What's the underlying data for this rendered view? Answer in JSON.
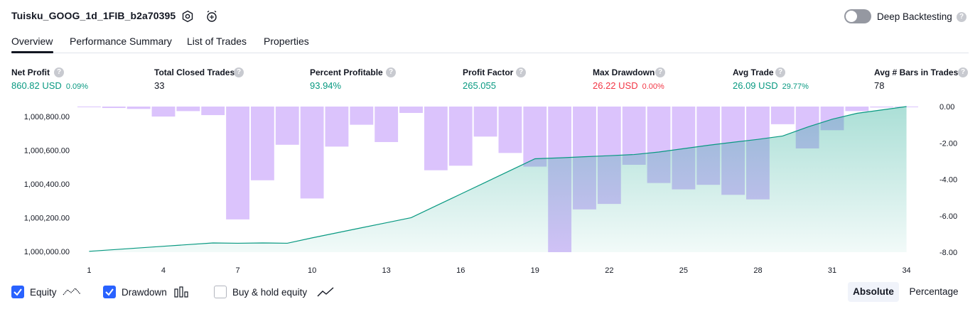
{
  "header": {
    "title": "Tuisku_GOOG_1d_1FIB_b2a70395",
    "deep_backtesting_label": "Deep Backtesting",
    "deep_backtesting_enabled": false,
    "help_glyph": "?"
  },
  "tabs": [
    {
      "label": "Overview",
      "active": true
    },
    {
      "label": "Performance Summary",
      "active": false
    },
    {
      "label": "List of Trades",
      "active": false
    },
    {
      "label": "Properties",
      "active": false
    }
  ],
  "metrics": [
    {
      "label": "Net Profit",
      "value": "860.82 USD",
      "pct": "0.09%",
      "color": "#089981"
    },
    {
      "label": "Total Closed Trades",
      "value": "33",
      "pct": "",
      "color": "#131722"
    },
    {
      "label": "Percent Profitable",
      "value": "93.94%",
      "pct": "",
      "color": "#089981"
    },
    {
      "label": "Profit Factor",
      "value": "265.055",
      "pct": "",
      "color": "#089981"
    },
    {
      "label": "Max Drawdown",
      "value": "26.22 USD",
      "pct": "0.00%",
      "color": "#f23645"
    },
    {
      "label": "Avg Trade",
      "value": "26.09 USD",
      "pct": "29.77%",
      "color": "#089981"
    },
    {
      "label": "Avg # Bars in Trades",
      "value": "78",
      "pct": "",
      "color": "#131722"
    }
  ],
  "chart_data": {
    "type": "line",
    "x_ticks": [
      "1",
      "4",
      "7",
      "10",
      "13",
      "16",
      "19",
      "22",
      "25",
      "28",
      "31",
      "34"
    ],
    "x_range": [
      1,
      34
    ],
    "left_axis": {
      "ticks": [
        "1,000,000.00",
        "1,000,200.00",
        "1,000,400.00",
        "1,000,600.00",
        "1,000,800.00"
      ],
      "range": [
        999995,
        1000860
      ]
    },
    "right_axis": {
      "ticks": [
        "0.00",
        "-2.00",
        "-4.00",
        "-6.00",
        "-8.00"
      ],
      "range": [
        -8,
        0
      ]
    },
    "series": [
      {
        "kind": "equity-area",
        "axis": "left",
        "color": "#089981",
        "x": [
          1,
          2,
          3,
          4,
          5,
          6,
          7,
          8,
          9,
          10,
          11,
          12,
          13,
          14,
          15,
          16,
          17,
          18,
          19,
          20,
          21,
          22,
          23,
          24,
          25,
          26,
          27,
          28,
          29,
          30,
          31,
          32,
          33,
          34
        ],
        "values": [
          1000000,
          1000010,
          1000020,
          1000030,
          1000040,
          1000050,
          1000048,
          1000050,
          1000048,
          1000080,
          1000110,
          1000140,
          1000170,
          1000200,
          1000270,
          1000340,
          1000410,
          1000480,
          1000550,
          1000555,
          1000562,
          1000568,
          1000575,
          1000590,
          1000610,
          1000630,
          1000648,
          1000665,
          1000685,
          1000738,
          1000785,
          1000820,
          1000840,
          1000860
        ]
      },
      {
        "kind": "drawdown-bars",
        "axis": "right",
        "color": "#c39bfa",
        "x": [
          1,
          2,
          3,
          4,
          5,
          6,
          7,
          8,
          9,
          10,
          11,
          12,
          13,
          14,
          15,
          16,
          17,
          18,
          19,
          20,
          21,
          22,
          23,
          24,
          25,
          26,
          27,
          28,
          29,
          30,
          31,
          32,
          33,
          34
        ],
        "values": [
          -0.03,
          -0.08,
          -0.13,
          -0.55,
          -0.25,
          -0.47,
          -6.2,
          -4.05,
          -2.1,
          -5.05,
          -2.2,
          -1.0,
          -1.95,
          -0.35,
          -3.5,
          -3.25,
          -1.65,
          -2.55,
          -3.3,
          -8.0,
          -5.65,
          -5.35,
          -3.2,
          -4.2,
          -4.55,
          -4.3,
          -4.85,
          -5.1,
          -0.97,
          -2.3,
          -1.3,
          -0.25,
          -0.05,
          -0.01
        ]
      }
    ]
  },
  "legend": [
    {
      "label": "Equity",
      "checked": true,
      "icon": "equity-line-icon"
    },
    {
      "label": "Drawdown",
      "checked": true,
      "icon": "drawdown-bars-icon"
    },
    {
      "label": "Buy & hold equity",
      "checked": false,
      "icon": "buy-hold-line-icon"
    }
  ],
  "scale_toggle": {
    "absolute_label": "Absolute",
    "percentage_label": "Percentage",
    "selected": "Absolute"
  }
}
